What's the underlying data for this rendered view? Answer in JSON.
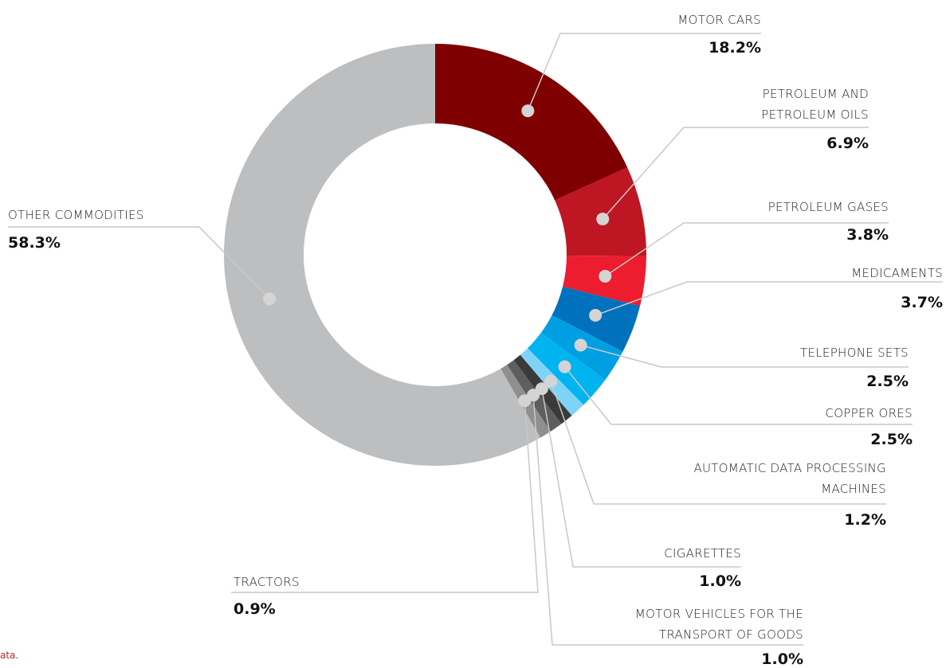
{
  "chart_data": {
    "type": "donut",
    "categories": [
      "MOTOR CARS",
      "PETROLEUM AND PETROLEUM OILS",
      "PETROLEUM GASES",
      "MEDICAMENTS",
      "TELEPHONE SETS",
      "COPPER ORES",
      "AUTOMATIC DATA PROCESSING MACHINES",
      "CIGARETTES",
      "MOTOR VEHICLES FOR THE TRANSPORT OF GOODS",
      "TRACTORS",
      "OTHER COMMODITIES"
    ],
    "values": [
      18.2,
      6.9,
      3.8,
      3.7,
      2.5,
      2.5,
      1.2,
      1.0,
      1.0,
      0.9,
      58.3
    ],
    "value_labels": [
      "18.2%",
      "6.9%",
      "3.8%",
      "3.7%",
      "2.5%",
      "2.5%",
      "1.2%",
      "1.0%",
      "1.0%",
      "0.9%",
      "58.3%"
    ],
    "colors": [
      "#7f0000",
      "#be1622",
      "#ed1c2e",
      "#0071bc",
      "#009fe3",
      "#00b4ef",
      "#7fd3f7",
      "#3a3a3a",
      "#5e5e5e",
      "#8f8f8f",
      "#bdbec0"
    ],
    "note": "ata."
  }
}
